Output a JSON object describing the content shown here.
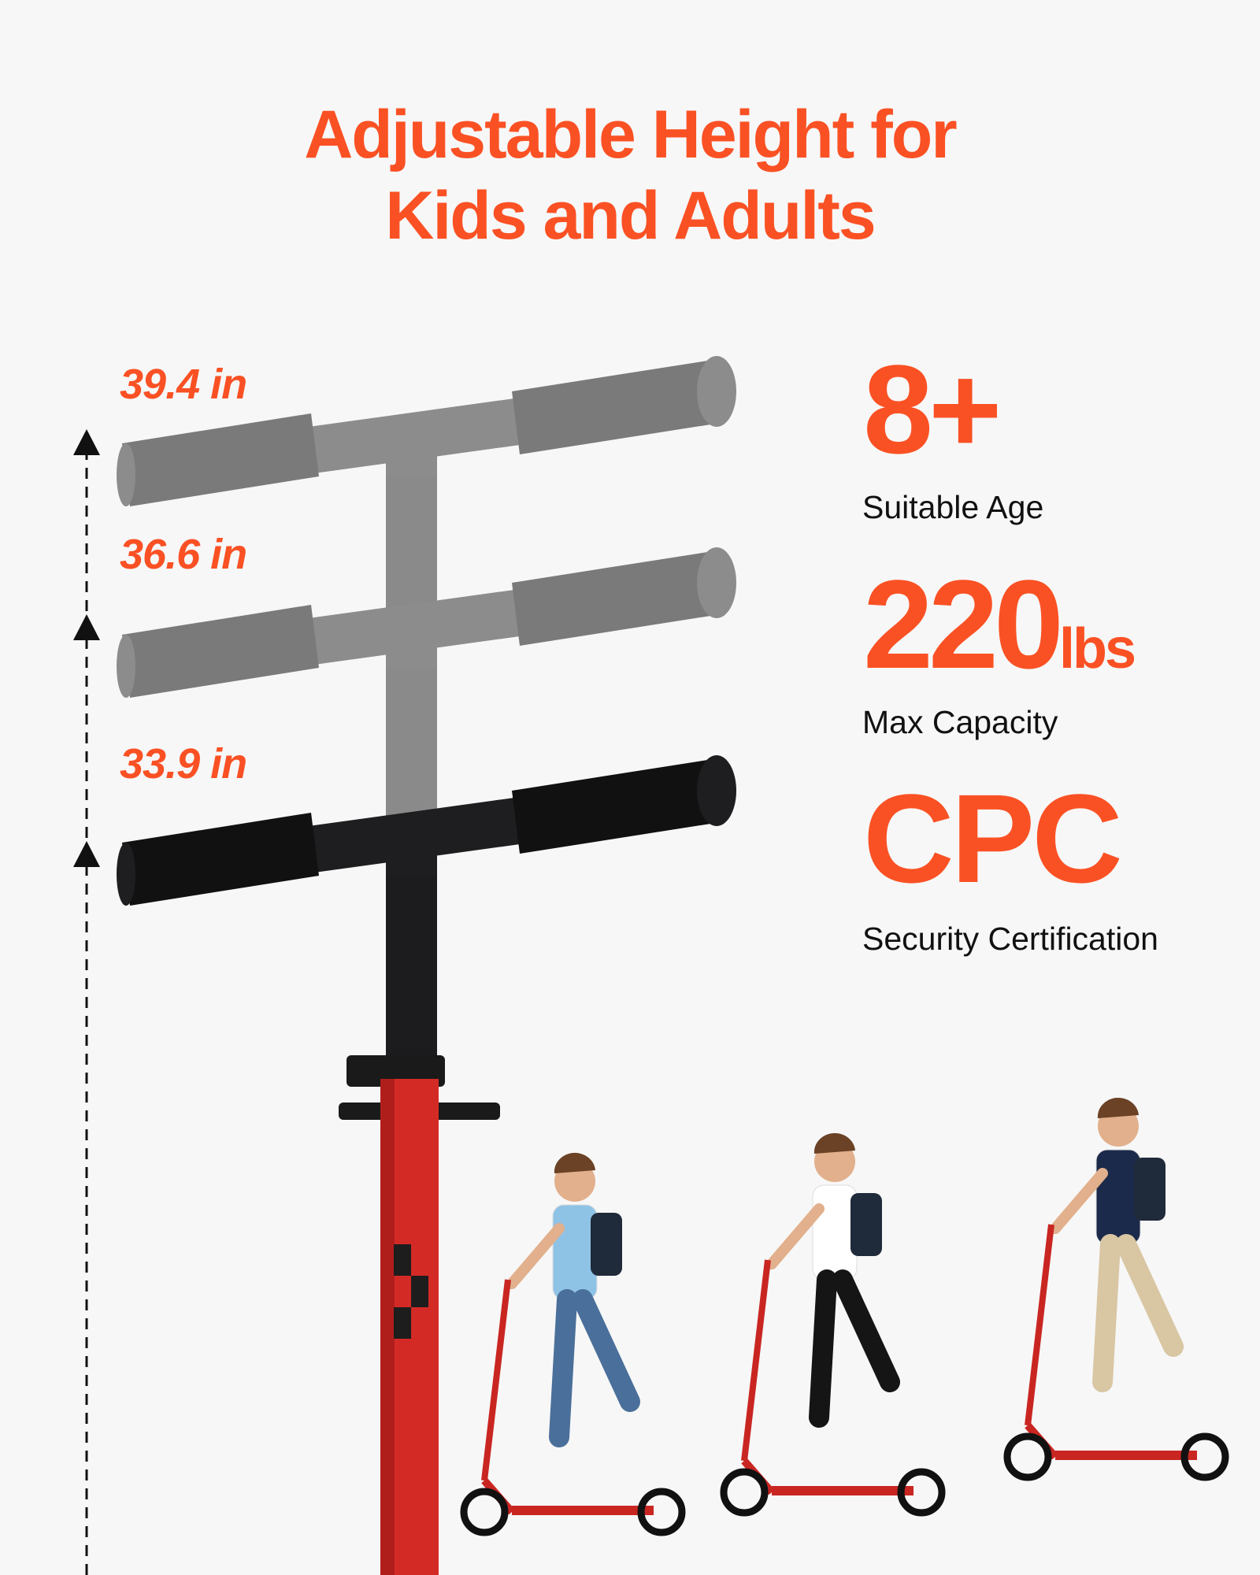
{
  "title": {
    "line1": "Adjustable Height for",
    "line2": "Kids and Adults"
  },
  "heights": [
    {
      "label": "39.4 in",
      "shade": "gray"
    },
    {
      "label": "36.6 in",
      "shade": "gray"
    },
    {
      "label": "33.9 in",
      "shade": "black"
    }
  ],
  "stats": [
    {
      "value": "8+",
      "unit": "",
      "caption": "Suitable Age"
    },
    {
      "value": "220",
      "unit": "lbs",
      "caption": "Max Capacity"
    },
    {
      "value": "CPC",
      "unit": "",
      "caption": "Security Certification"
    }
  ],
  "colors": {
    "accent": "#fa5124",
    "background": "#f7f7f7",
    "scooter": "#d42a26"
  }
}
